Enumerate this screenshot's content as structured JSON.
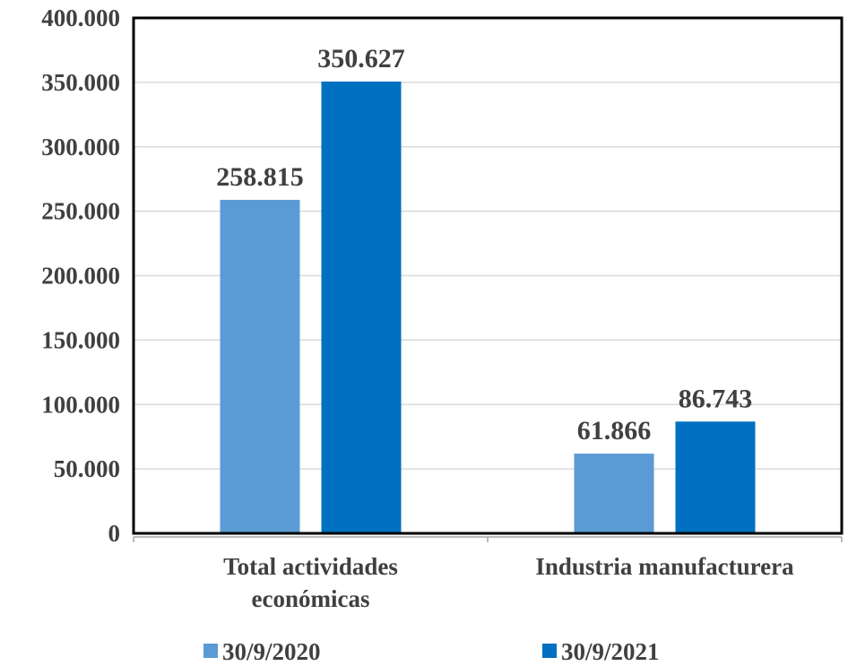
{
  "chart_data": {
    "type": "bar",
    "categories": [
      [
        "Total actividades",
        "económicas"
      ],
      [
        "Industria manufacturera"
      ]
    ],
    "series": [
      {
        "name": "30/9/2020",
        "color": "#5B9BD5",
        "values": [
          258815,
          61866
        ],
        "labels": [
          "258.815",
          "61.866"
        ]
      },
      {
        "name": "30/9/2021",
        "color": "#0070C0",
        "values": [
          350627,
          86743
        ],
        "labels": [
          "350.627",
          "86.743"
        ]
      }
    ],
    "ylim": [
      0,
      400000
    ],
    "yticks": [
      0,
      50000,
      100000,
      150000,
      200000,
      250000,
      300000,
      350000,
      400000
    ],
    "ytick_labels": [
      "0",
      "50.000",
      "100.000",
      "150.000",
      "200.000",
      "250.000",
      "300.000",
      "350.000",
      "400.000"
    ],
    "grid": true,
    "legend_position": "bottom"
  }
}
